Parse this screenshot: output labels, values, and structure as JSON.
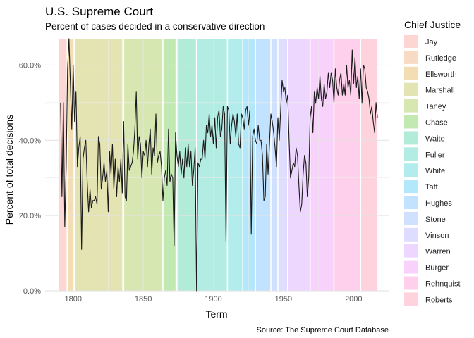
{
  "chart_data": {
    "type": "line",
    "title": "U.S. Supreme Court",
    "subtitle": "Percent of cases decided in a conservative direction",
    "xlabel": "Term",
    "ylabel": "Percent of total decisions",
    "caption": "Source: The Supreme Court Database",
    "xlim": [
      1780,
      2025
    ],
    "ylim": [
      0,
      0.67
    ],
    "x_ticks": [
      1800,
      1850,
      1900,
      1950,
      2000
    ],
    "x_tick_labels": [
      "1800",
      "1850",
      "1900",
      "1950",
      "2000"
    ],
    "y_ticks": [
      0,
      0.2,
      0.4,
      0.6
    ],
    "y_tick_labels": [
      "0.0%",
      "20.0%",
      "40.0%",
      "60.0%"
    ],
    "grid": true,
    "legend_position": "right",
    "legend_title": "Chief Justice",
    "eras": [
      {
        "name": "Jay",
        "start": 1790,
        "end": 1795,
        "color": "#F8766D"
      },
      {
        "name": "Rutledge",
        "start": 1795,
        "end": 1796,
        "color": "#EB8335"
      },
      {
        "name": "Ellsworth",
        "start": 1796,
        "end": 1800,
        "color": "#D89000"
      },
      {
        "name": "Marshall",
        "start": 1801,
        "end": 1835,
        "color": "#A3A500"
      },
      {
        "name": "Taney",
        "start": 1836,
        "end": 1864,
        "color": "#7CAE00"
      },
      {
        "name": "Chase",
        "start": 1864,
        "end": 1873,
        "color": "#39B600"
      },
      {
        "name": "Waite",
        "start": 1874,
        "end": 1888,
        "color": "#00BF7D"
      },
      {
        "name": "Fuller",
        "start": 1888,
        "end": 1910,
        "color": "#00C1A3"
      },
      {
        "name": "White",
        "start": 1910,
        "end": 1921,
        "color": "#00BFC4"
      },
      {
        "name": "Taft",
        "start": 1921,
        "end": 1930,
        "color": "#00B0F6"
      },
      {
        "name": "Hughes",
        "start": 1930,
        "end": 1941,
        "color": "#35A2FF"
      },
      {
        "name": "Stone",
        "start": 1941,
        "end": 1946,
        "color": "#619CFF"
      },
      {
        "name": "Vinson",
        "start": 1946,
        "end": 1953,
        "color": "#9590FF"
      },
      {
        "name": "Warren",
        "start": 1953,
        "end": 1969,
        "color": "#C77CFF"
      },
      {
        "name": "Burger",
        "start": 1969,
        "end": 1986,
        "color": "#E76BF3"
      },
      {
        "name": "Rehnquist",
        "start": 1986,
        "end": 2005,
        "color": "#FF62BC"
      },
      {
        "name": "Roberts",
        "start": 2005,
        "end": 2017,
        "color": "#FF6C91"
      }
    ],
    "series": [
      {
        "color": "#1a1a1a",
        "points": [
          [
            1791,
            0.5
          ],
          [
            1792,
            0.25
          ],
          [
            1793,
            0.5
          ],
          [
            1794,
            0.17
          ],
          [
            1795,
            0.33
          ],
          [
            1796,
            0.59
          ],
          [
            1797,
            0.67
          ],
          [
            1798,
            0.55
          ],
          [
            1799,
            0.43
          ],
          [
            1800,
            0.6
          ],
          [
            1801,
            0.45
          ],
          [
            1802,
            0.53
          ],
          [
            1803,
            0.33
          ],
          [
            1804,
            0.38
          ],
          [
            1805,
            0.41
          ],
          [
            1806,
            0.11
          ],
          [
            1807,
            0.35
          ],
          [
            1808,
            0.38
          ],
          [
            1809,
            0.4
          ],
          [
            1810,
            0.29
          ],
          [
            1811,
            0.21
          ],
          [
            1812,
            0.27
          ],
          [
            1813,
            0.22
          ],
          [
            1814,
            0.24
          ],
          [
            1815,
            0.24
          ],
          [
            1816,
            0.25
          ],
          [
            1817,
            0.23
          ],
          [
            1818,
            0.41
          ],
          [
            1819,
            0.39
          ],
          [
            1820,
            0.27
          ],
          [
            1821,
            0.3
          ],
          [
            1822,
            0.34
          ],
          [
            1823,
            0.29
          ],
          [
            1824,
            0.32
          ],
          [
            1825,
            0.21
          ],
          [
            1826,
            0.37
          ],
          [
            1827,
            0.31
          ],
          [
            1828,
            0.39
          ],
          [
            1829,
            0.27
          ],
          [
            1830,
            0.35
          ],
          [
            1831,
            0.25
          ],
          [
            1832,
            0.33
          ],
          [
            1833,
            0.29
          ],
          [
            1834,
            0.35
          ],
          [
            1835,
            0.26
          ],
          [
            1836,
            0.45
          ],
          [
            1837,
            0.25
          ],
          [
            1838,
            0.24
          ],
          [
            1839,
            0.39
          ],
          [
            1840,
            0.32
          ],
          [
            1841,
            0.33
          ],
          [
            1842,
            0.34
          ],
          [
            1843,
            0.37
          ],
          [
            1844,
            0.43
          ],
          [
            1845,
            0.53
          ],
          [
            1846,
            0.35
          ],
          [
            1847,
            0.41
          ],
          [
            1848,
            0.39
          ],
          [
            1849,
            0.3
          ],
          [
            1850,
            0.37
          ],
          [
            1851,
            0.36
          ],
          [
            1852,
            0.4
          ],
          [
            1853,
            0.33
          ],
          [
            1854,
            0.39
          ],
          [
            1855,
            0.43
          ],
          [
            1856,
            0.31
          ],
          [
            1857,
            0.38
          ],
          [
            1858,
            0.36
          ],
          [
            1859,
            0.47
          ],
          [
            1860,
            0.34
          ],
          [
            1861,
            0.36
          ],
          [
            1862,
            0.37
          ],
          [
            1863,
            0.33
          ],
          [
            1864,
            0.24
          ],
          [
            1865,
            0.3
          ],
          [
            1866,
            0.32
          ],
          [
            1867,
            0.28
          ],
          [
            1868,
            0.43
          ],
          [
            1869,
            0.29
          ],
          [
            1870,
            0.31
          ],
          [
            1871,
            0.3
          ],
          [
            1872,
            0.12
          ],
          [
            1873,
            0.42
          ],
          [
            1874,
            0.36
          ],
          [
            1875,
            0.33
          ],
          [
            1876,
            0.37
          ],
          [
            1877,
            0.31
          ],
          [
            1878,
            0.35
          ],
          [
            1879,
            0.3
          ],
          [
            1880,
            0.38
          ],
          [
            1881,
            0.33
          ],
          [
            1882,
            0.39
          ],
          [
            1883,
            0.33
          ],
          [
            1884,
            0.37
          ],
          [
            1885,
            0.28
          ],
          [
            1886,
            0.32
          ],
          [
            1887,
            0.38
          ],
          [
            1888,
            0.0
          ],
          [
            1889,
            0.34
          ],
          [
            1890,
            0.33
          ],
          [
            1891,
            0.35
          ],
          [
            1892,
            0.35
          ],
          [
            1893,
            0.4
          ],
          [
            1894,
            0.35
          ],
          [
            1895,
            0.44
          ],
          [
            1896,
            0.42
          ],
          [
            1897,
            0.47
          ],
          [
            1898,
            0.41
          ],
          [
            1899,
            0.44
          ],
          [
            1900,
            0.39
          ],
          [
            1901,
            0.46
          ],
          [
            1902,
            0.38
          ],
          [
            1903,
            0.46
          ],
          [
            1904,
            0.48
          ],
          [
            1905,
            0.41
          ],
          [
            1906,
            0.43
          ],
          [
            1907,
            0.49
          ],
          [
            1908,
            0.47
          ],
          [
            1909,
            0.13
          ],
          [
            1910,
            0.49
          ],
          [
            1911,
            0.48
          ],
          [
            1912,
            0.39
          ],
          [
            1913,
            0.44
          ],
          [
            1914,
            0.47
          ],
          [
            1915,
            0.45
          ],
          [
            1916,
            0.41
          ],
          [
            1917,
            0.47
          ],
          [
            1918,
            0.39
          ],
          [
            1919,
            0.38
          ],
          [
            1920,
            0.47
          ],
          [
            1921,
            0.46
          ],
          [
            1922,
            0.43
          ],
          [
            1923,
            0.48
          ],
          [
            1924,
            0.49
          ],
          [
            1925,
            0.44
          ],
          [
            1926,
            0.48
          ],
          [
            1927,
            0.15
          ],
          [
            1928,
            0.41
          ],
          [
            1929,
            0.43
          ],
          [
            1930,
            0.4
          ],
          [
            1931,
            0.39
          ],
          [
            1932,
            0.44
          ],
          [
            1933,
            0.4
          ],
          [
            1934,
            0.4
          ],
          [
            1935,
            0.36
          ],
          [
            1936,
            0.24
          ],
          [
            1937,
            0.25
          ],
          [
            1938,
            0.39
          ],
          [
            1939,
            0.31
          ],
          [
            1940,
            0.39
          ],
          [
            1941,
            0.47
          ],
          [
            1942,
            0.45
          ],
          [
            1943,
            0.42
          ],
          [
            1944,
            0.38
          ],
          [
            1945,
            0.33
          ],
          [
            1946,
            0.46
          ],
          [
            1947,
            0.4
          ],
          [
            1948,
            0.48
          ],
          [
            1949,
            0.56
          ],
          [
            1950,
            0.53
          ],
          [
            1951,
            0.54
          ],
          [
            1952,
            0.5
          ],
          [
            1953,
            0.52
          ],
          [
            1954,
            0.4
          ],
          [
            1955,
            0.3
          ],
          [
            1956,
            0.32
          ],
          [
            1957,
            0.34
          ],
          [
            1958,
            0.33
          ],
          [
            1959,
            0.38
          ],
          [
            1960,
            0.36
          ],
          [
            1961,
            0.28
          ],
          [
            1962,
            0.21
          ],
          [
            1963,
            0.23
          ],
          [
            1964,
            0.31
          ],
          [
            1965,
            0.36
          ],
          [
            1966,
            0.34
          ],
          [
            1967,
            0.25
          ],
          [
            1968,
            0.3
          ],
          [
            1969,
            0.46
          ],
          [
            1970,
            0.49
          ],
          [
            1971,
            0.42
          ],
          [
            1972,
            0.53
          ],
          [
            1973,
            0.5
          ],
          [
            1974,
            0.54
          ],
          [
            1975,
            0.51
          ],
          [
            1976,
            0.57
          ],
          [
            1977,
            0.51
          ],
          [
            1978,
            0.49
          ],
          [
            1979,
            0.55
          ],
          [
            1980,
            0.51
          ],
          [
            1981,
            0.53
          ],
          [
            1982,
            0.58
          ],
          [
            1983,
            0.54
          ],
          [
            1984,
            0.58
          ],
          [
            1985,
            0.56
          ],
          [
            1986,
            0.5
          ],
          [
            1987,
            0.59
          ],
          [
            1988,
            0.54
          ],
          [
            1989,
            0.52
          ],
          [
            1990,
            0.56
          ],
          [
            1991,
            0.58
          ],
          [
            1992,
            0.52
          ],
          [
            1993,
            0.55
          ],
          [
            1994,
            0.52
          ],
          [
            1995,
            0.6
          ],
          [
            1996,
            0.54
          ],
          [
            1997,
            0.56
          ],
          [
            1998,
            0.52
          ],
          [
            1999,
            0.64
          ],
          [
            2000,
            0.55
          ],
          [
            2001,
            0.62
          ],
          [
            2002,
            0.54
          ],
          [
            2003,
            0.57
          ],
          [
            2004,
            0.51
          ],
          [
            2005,
            0.59
          ],
          [
            2006,
            0.5
          ],
          [
            2007,
            0.6
          ],
          [
            2008,
            0.59
          ],
          [
            2009,
            0.54
          ],
          [
            2010,
            0.53
          ],
          [
            2011,
            0.51
          ],
          [
            2012,
            0.47
          ],
          [
            2013,
            0.49
          ],
          [
            2014,
            0.45
          ],
          [
            2015,
            0.42
          ],
          [
            2016,
            0.5
          ],
          [
            2017,
            0.46
          ]
        ]
      }
    ]
  }
}
